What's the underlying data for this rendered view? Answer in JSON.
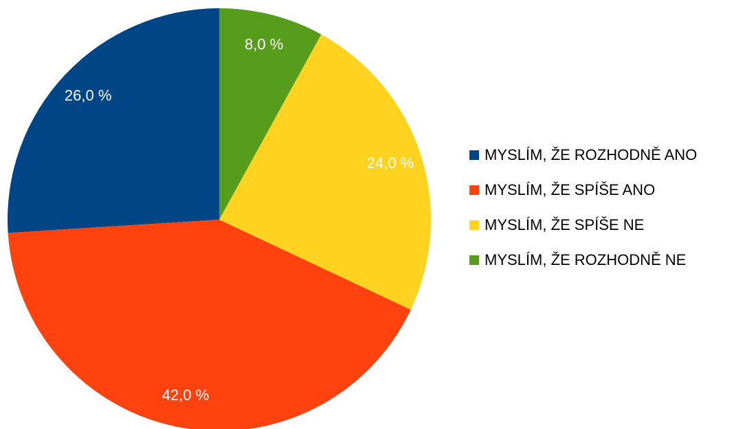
{
  "chart_data": {
    "type": "pie",
    "categories": [
      "MYSLÍM, ŽE ROZHODNĚ ANO",
      "MYSLÍM, ŽE SPÍŠE ANO",
      "MYSLÍM, ŽE SPÍŠE NE",
      "MYSLÍM, ŽE ROZHODNĚ NE"
    ],
    "values": [
      26,
      42,
      24,
      8
    ],
    "value_labels": [
      "26,0 %",
      "42,0 %",
      "24,0 %",
      "8,0 %"
    ],
    "colors": [
      "#004586",
      "#ff420e",
      "#ffd320",
      "#579d1c"
    ],
    "legend": "right"
  }
}
